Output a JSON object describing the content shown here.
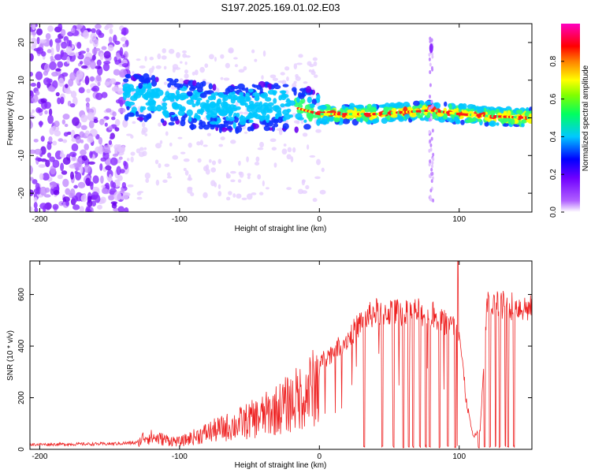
{
  "title": "S197.2025.169.01.02.E03",
  "chart_data": [
    {
      "type": "heatmap",
      "xlabel": "Height of straight line (km)",
      "ylabel": "Frequency (Hz)",
      "xlim": [
        -207,
        152
      ],
      "ylim": [
        -25,
        25
      ],
      "x_ticks": [
        "-200",
        "-100",
        "0",
        "100"
      ],
      "x_tick_values": [
        -200,
        -100,
        0,
        100
      ],
      "y_ticks": [
        "-20",
        "-10",
        "0",
        "10",
        "20"
      ],
      "y_tick_values": [
        -20,
        -10,
        0,
        10,
        20
      ],
      "colorbar": {
        "label": "Normalized spectral amplitude",
        "range": [
          0,
          1
        ],
        "ticks": [
          "0.0",
          "0.2",
          "0.4",
          "0.6",
          "0.8"
        ],
        "tick_values": [
          0.0,
          0.2,
          0.4,
          0.6,
          0.8
        ],
        "colors": [
          "#ffffff",
          "#8000ff",
          "#0000ff",
          "#00ffff",
          "#00ff00",
          "#ffff00",
          "#ff8000",
          "#ff0000",
          "#ff00ff"
        ]
      },
      "ridge": {
        "x": [
          -140,
          -120,
          -100,
          -80,
          -60,
          -40,
          -20,
          0,
          20,
          40,
          60,
          80,
          100,
          120,
          150
        ],
        "y": [
          6,
          5,
          4,
          3,
          2.5,
          3,
          3,
          1,
          1,
          1,
          1.5,
          2,
          1,
          0.5,
          0
        ]
      },
      "spike_x": 80
    },
    {
      "type": "line",
      "xlabel": "Height of straight line (km)",
      "ylabel": "SNR (10 * v/v)",
      "xlim": [
        -207,
        152
      ],
      "ylim": [
        0,
        730
      ],
      "x_ticks": [
        "-200",
        "-100",
        "0",
        "100"
      ],
      "x_tick_values": [
        -200,
        -100,
        0,
        100
      ],
      "y_ticks": [
        "0",
        "200",
        "400",
        "600"
      ],
      "y_tick_values": [
        0,
        200,
        400,
        600
      ],
      "color": "#ee2222",
      "envelope": {
        "x": [
          -207,
          -150,
          -130,
          -125,
          -100,
          -80,
          -60,
          -40,
          -20,
          0,
          20,
          30,
          40,
          60,
          70,
          80,
          90,
          100,
          105,
          110,
          115,
          120,
          130,
          140,
          152
        ],
        "y": [
          22,
          25,
          30,
          70,
          40,
          90,
          130,
          180,
          250,
          350,
          450,
          520,
          560,
          560,
          560,
          550,
          520,
          480,
          200,
          50,
          80,
          590,
          590,
          585,
          570
        ]
      },
      "dropouts_x": [
        32,
        45,
        53,
        60,
        64,
        67,
        72,
        76,
        79,
        86,
        92,
        97,
        99,
        114,
        118,
        122,
        126,
        129,
        133,
        135,
        139
      ],
      "spike_x": 99
    }
  ]
}
